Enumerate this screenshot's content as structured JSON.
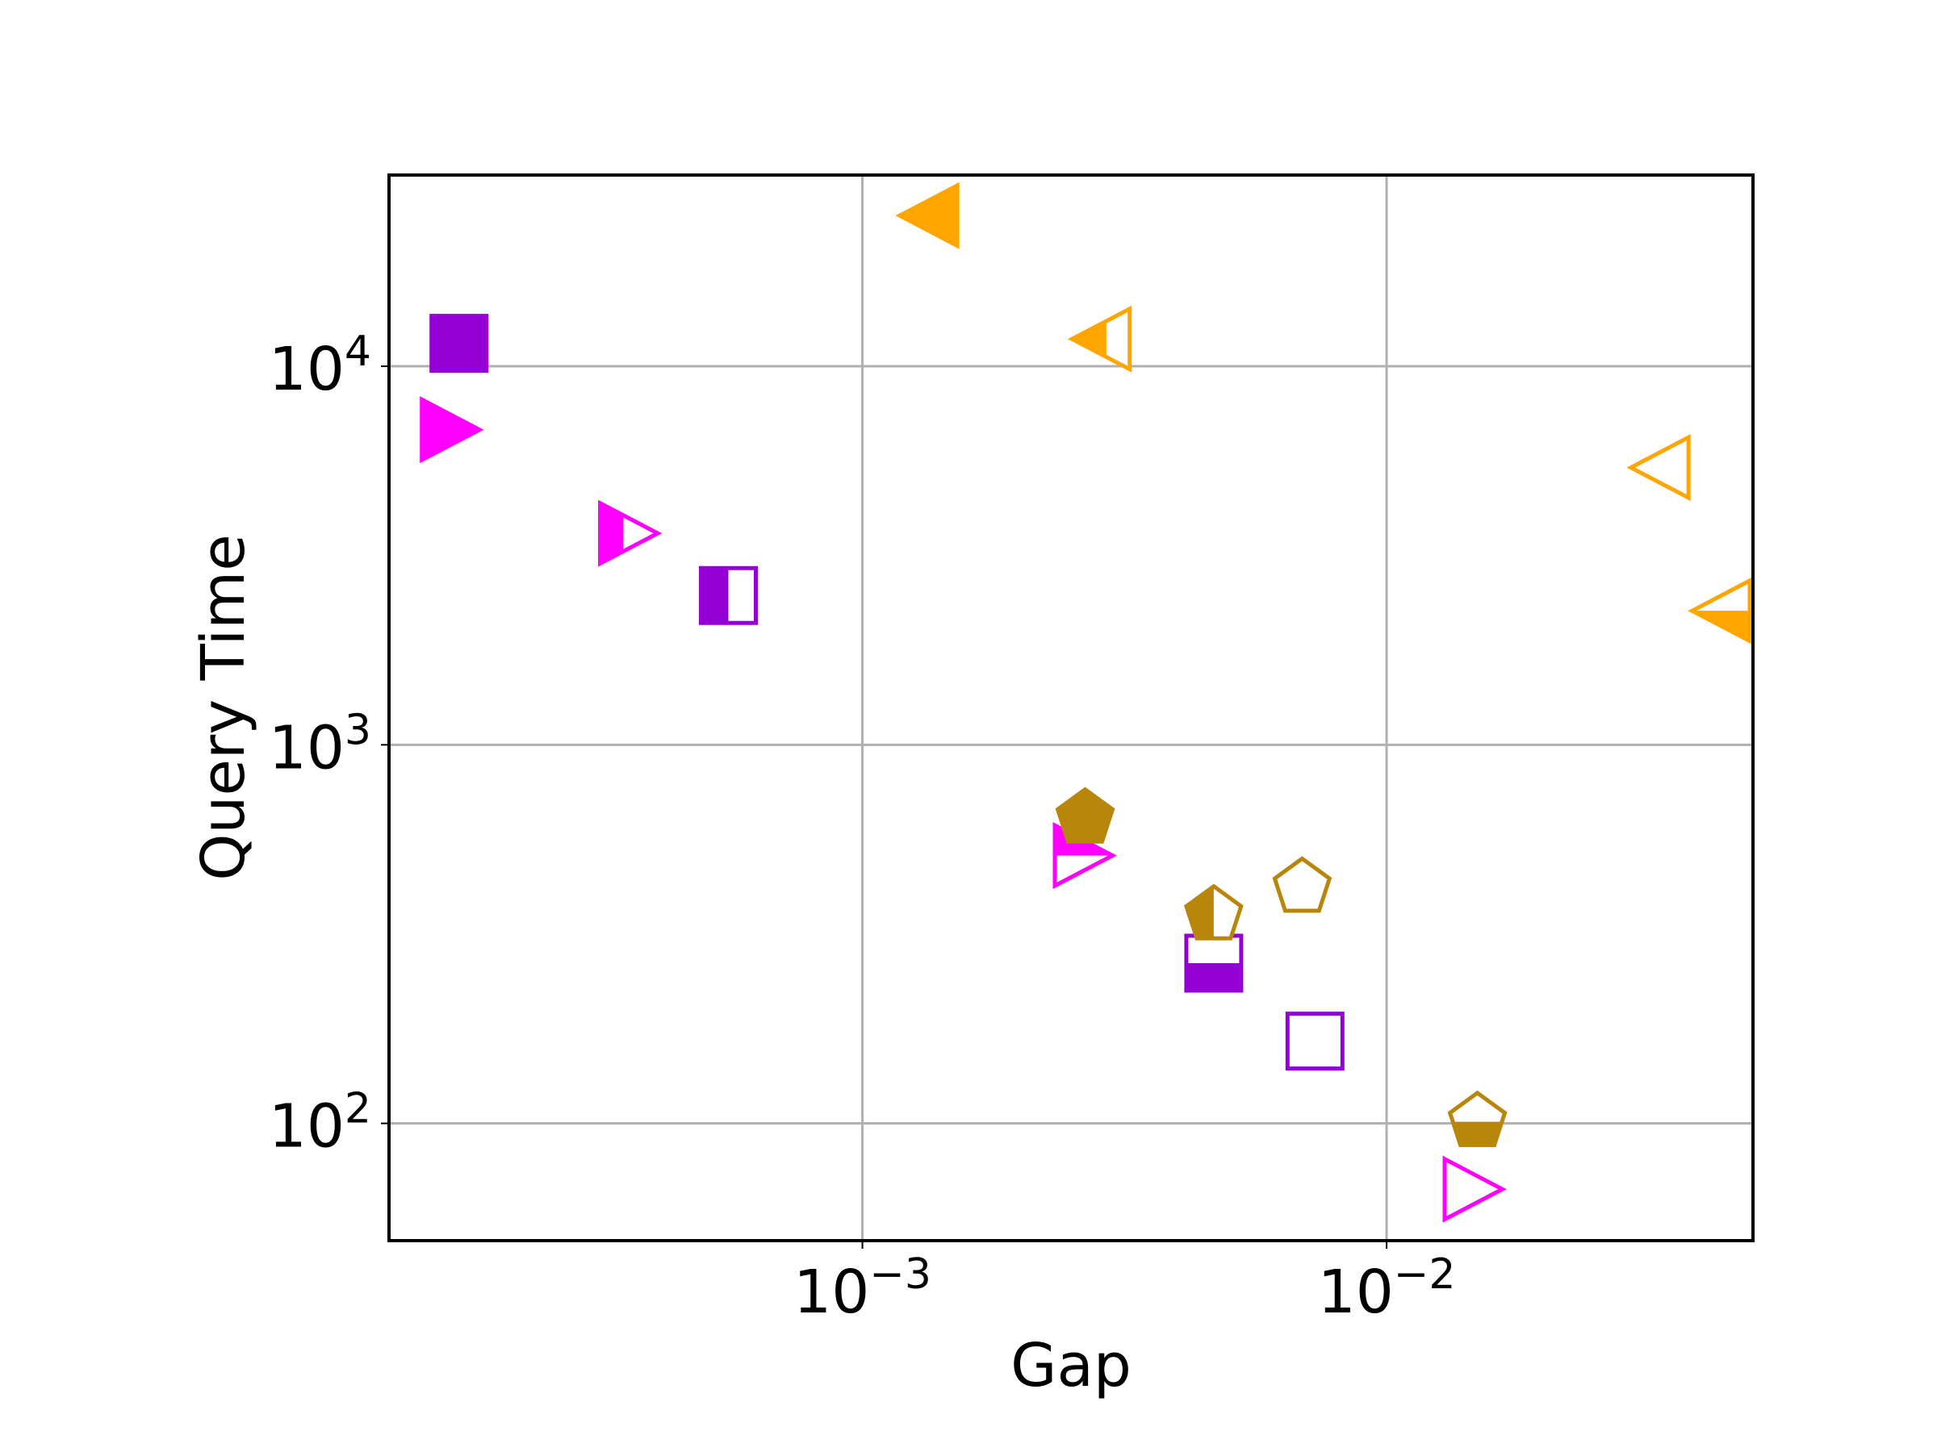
{
  "chart_data": {
    "type": "scatter",
    "title": "",
    "xlabel": "Gap",
    "ylabel": "Query Time",
    "xscale": "log",
    "yscale": "log",
    "xlim": [
      0.000125,
      0.05
    ],
    "ylim": [
      49,
      32000
    ],
    "grid": true,
    "legend": "none",
    "xticks": [
      {
        "value": 0.001,
        "base": "10",
        "exp": "−3"
      },
      {
        "value": 0.01,
        "base": "10",
        "exp": "−2"
      }
    ],
    "yticks": [
      {
        "value": 100,
        "base": "10",
        "exp": "2"
      },
      {
        "value": 1000,
        "base": "10",
        "exp": "3"
      },
      {
        "value": 10000,
        "base": "10",
        "exp": "4"
      }
    ],
    "points": [
      {
        "x": 0.00017,
        "y": 11500,
        "marker": "square",
        "fill": "full",
        "color": "#9400d3"
      },
      {
        "x": 0.000555,
        "y": 2480,
        "marker": "square",
        "fill": "left",
        "color": "#9400d3"
      },
      {
        "x": 0.00468,
        "y": 265,
        "marker": "square",
        "fill": "bottom",
        "color": "#9400d3"
      },
      {
        "x": 0.0073,
        "y": 165,
        "marker": "square",
        "fill": "none",
        "color": "#9400d3"
      },
      {
        "x": 0.00016,
        "y": 6800,
        "marker": "triangle-right",
        "fill": "full",
        "color": "#ff00ff"
      },
      {
        "x": 0.00035,
        "y": 3620,
        "marker": "triangle-right",
        "fill": "left",
        "color": "#ff00ff"
      },
      {
        "x": 0.00258,
        "y": 510,
        "marker": "triangle-right",
        "fill": "top",
        "color": "#ff00ff"
      },
      {
        "x": 0.0143,
        "y": 67,
        "marker": "triangle-right",
        "fill": "none",
        "color": "#ff00ff"
      },
      {
        "x": 0.00137,
        "y": 25000,
        "marker": "triangle-left",
        "fill": "full",
        "color": "#ffa500"
      },
      {
        "x": 0.00292,
        "y": 11800,
        "marker": "triangle-left",
        "fill": "left",
        "color": "#ffa500"
      },
      {
        "x": 0.034,
        "y": 5400,
        "marker": "triangle-left",
        "fill": "none",
        "color": "#ffa500"
      },
      {
        "x": 0.0445,
        "y": 2260,
        "marker": "triangle-left",
        "fill": "bottom",
        "color": "#ffa500"
      },
      {
        "x": 0.00266,
        "y": 640,
        "marker": "pentagon",
        "fill": "full",
        "color": "#b8860b"
      },
      {
        "x": 0.00468,
        "y": 355,
        "marker": "pentagon",
        "fill": "left",
        "color": "#b8860b"
      },
      {
        "x": 0.0069,
        "y": 420,
        "marker": "pentagon",
        "fill": "none",
        "color": "#b8860b"
      },
      {
        "x": 0.0149,
        "y": 101,
        "marker": "pentagon",
        "fill": "bottom",
        "color": "#b8860b"
      }
    ]
  }
}
